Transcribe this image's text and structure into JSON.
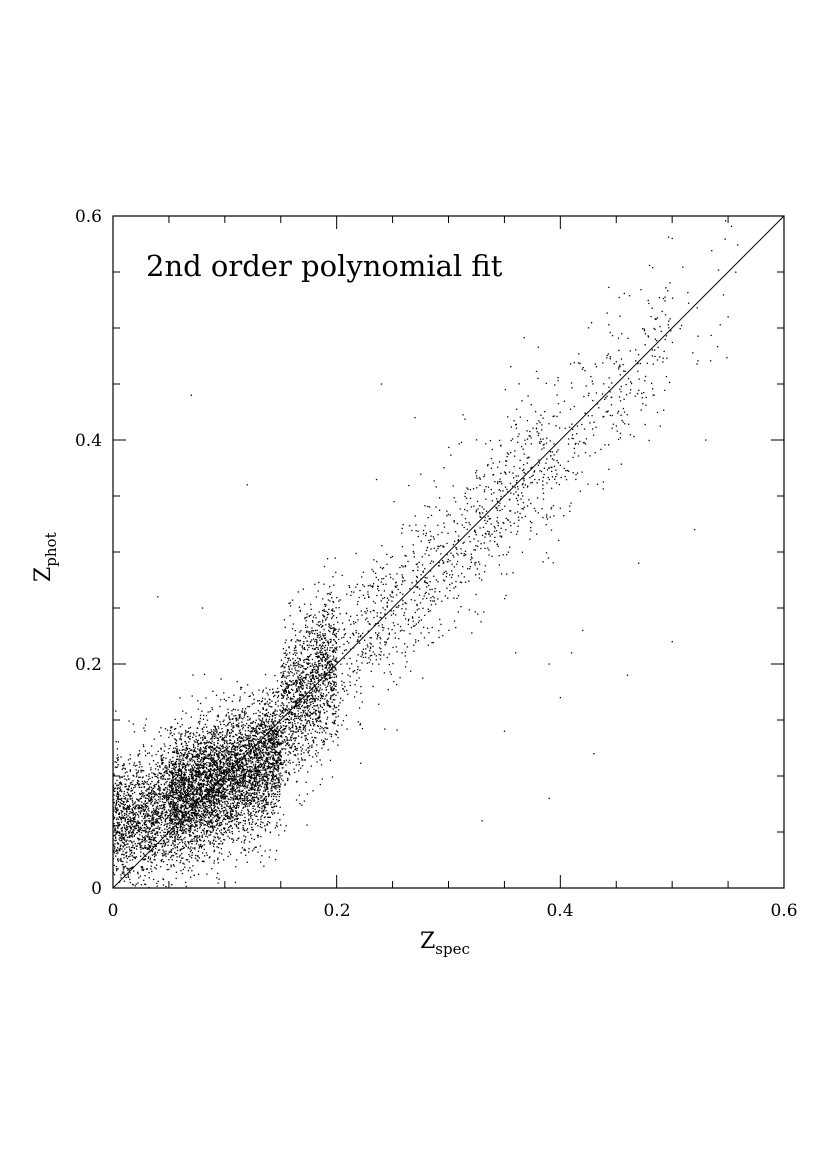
{
  "chart_data": {
    "type": "scatter",
    "annotation": "2nd order polynomial fit",
    "xlabel": {
      "main": "Z",
      "sub": "spec"
    },
    "ylabel": {
      "main": "Z",
      "sub": "phot"
    },
    "xlim": [
      0,
      0.6
    ],
    "ylim": [
      0,
      0.6
    ],
    "x_ticks": [
      0,
      0.2,
      0.4,
      0.6
    ],
    "x_tick_labels": [
      "0",
      "0.2",
      "0.4",
      "0.6"
    ],
    "y_ticks": [
      0,
      0.2,
      0.4,
      0.6
    ],
    "y_tick_labels": [
      "0",
      "0.2",
      "0.4",
      "0.6"
    ],
    "grid": false,
    "reference_line": {
      "x": [
        0,
        0.6
      ],
      "y": [
        0,
        0.6
      ]
    },
    "series": [
      {
        "point_density_profile": [
          {
            "z_spec_range": [
              0.0,
              0.05
            ],
            "z_phot_center": 0.065,
            "relative_density": 0.55
          },
          {
            "z_spec_range": [
              0.05,
              0.1
            ],
            "z_phot_center": 0.09,
            "relative_density": 1.0
          },
          {
            "z_spec_range": [
              0.1,
              0.15
            ],
            "z_phot_center": 0.115,
            "relative_density": 0.85
          },
          {
            "z_spec_range": [
              0.15,
              0.2
            ],
            "z_phot_center": 0.16,
            "relative_density": 0.55
          },
          {
            "z_spec_range": [
              0.2,
              0.3
            ],
            "z_phot_center": 0.24,
            "relative_density": 0.22
          },
          {
            "z_spec_range": [
              0.3,
              0.4
            ],
            "z_phot_center": 0.34,
            "relative_density": 0.2
          },
          {
            "z_spec_range": [
              0.4,
              0.5
            ],
            "z_phot_center": 0.43,
            "relative_density": 0.1
          },
          {
            "z_spec_range": [
              0.5,
              0.56
            ],
            "z_phot_center": 0.5,
            "relative_density": 0.01
          }
        ],
        "outliers": [
          [
            0.5,
            0.58
          ],
          [
            0.55,
            0.51
          ],
          [
            0.45,
            0.47
          ],
          [
            0.24,
            0.45
          ],
          [
            0.38,
            0.455
          ],
          [
            0.42,
            0.23
          ],
          [
            0.41,
            0.21
          ],
          [
            0.39,
            0.2
          ],
          [
            0.46,
            0.19
          ],
          [
            0.52,
            0.32
          ],
          [
            0.53,
            0.4
          ],
          [
            0.36,
            0.21
          ],
          [
            0.4,
            0.17
          ],
          [
            0.35,
            0.14
          ],
          [
            0.33,
            0.06
          ],
          [
            0.43,
            0.12
          ],
          [
            0.39,
            0.08
          ],
          [
            0.08,
            0.25
          ],
          [
            0.12,
            0.36
          ],
          [
            0.07,
            0.44
          ],
          [
            0.04,
            0.26
          ],
          [
            0.27,
            0.42
          ],
          [
            0.47,
            0.29
          ],
          [
            0.5,
            0.22
          ]
        ],
        "color": "#000000"
      }
    ]
  }
}
